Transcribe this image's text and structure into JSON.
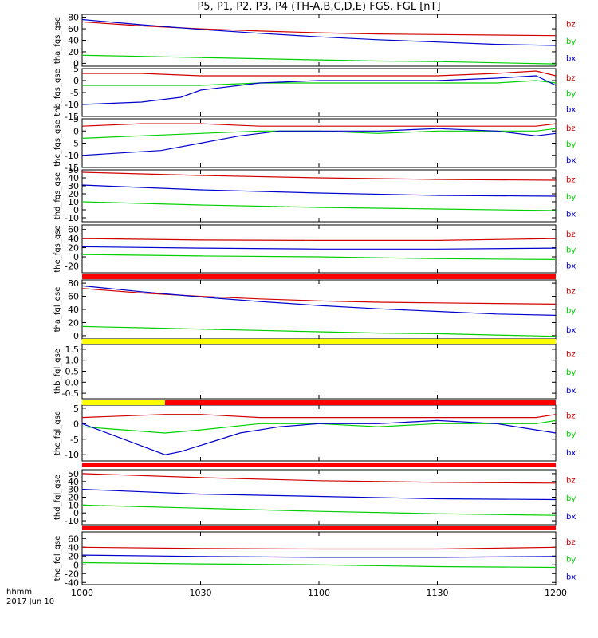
{
  "title": "P5, P1, P2, P3, P4 (TH-A,B,C,D,E) FGS, FGL [nT]",
  "footer": {
    "label": "hhmm",
    "date": "2017 Jun 10"
  },
  "colors": {
    "bz": "#d00000",
    "by": "#00d000",
    "bx": "#0000cc",
    "bar_red": "#ff0000",
    "bar_yellow": "#ffff00",
    "axis": "#000000"
  },
  "x_axis": {
    "ticks": [
      0,
      30,
      60,
      90,
      120
    ],
    "tick_labels": [
      "1000",
      "1030",
      "1100",
      "1130",
      "1200"
    ],
    "range_minutes": [
      0,
      120
    ]
  },
  "chart_data": [
    {
      "type": "line",
      "ylabel": "tha_fgs_gse",
      "ylim": [
        -5,
        85
      ],
      "yticks": [
        0,
        20,
        40,
        60,
        80
      ],
      "series": [
        {
          "name": "bz",
          "x": [
            0,
            15,
            30,
            45,
            60,
            75,
            90,
            105,
            120
          ],
          "y": [
            72,
            65,
            60,
            56,
            53,
            51,
            50,
            49,
            48
          ]
        },
        {
          "name": "by",
          "x": [
            0,
            15,
            30,
            45,
            60,
            75,
            90,
            105,
            120
          ],
          "y": [
            14,
            12,
            10,
            8,
            6,
            4,
            3,
            1,
            -1
          ]
        },
        {
          "name": "bx",
          "x": [
            0,
            15,
            30,
            45,
            60,
            75,
            90,
            105,
            120
          ],
          "y": [
            76,
            67,
            59,
            52,
            46,
            41,
            37,
            33,
            31
          ]
        }
      ]
    },
    {
      "type": "line",
      "ylabel": "thb_fgs_gse",
      "ylim": [
        -15,
        5
      ],
      "yticks": [
        -15,
        -10,
        -5,
        0,
        5
      ],
      "series": [
        {
          "name": "bz",
          "x": [
            0,
            15,
            30,
            45,
            60,
            75,
            90,
            105,
            115,
            120
          ],
          "y": [
            3,
            3,
            2,
            2,
            2,
            2,
            2,
            3,
            4,
            2
          ]
        },
        {
          "name": "by",
          "x": [
            0,
            15,
            30,
            45,
            60,
            75,
            90,
            105,
            115,
            120
          ],
          "y": [
            -2,
            -2,
            -2,
            -1,
            -1,
            -1,
            -1,
            -1,
            0,
            -1
          ]
        },
        {
          "name": "bx",
          "x": [
            0,
            15,
            25,
            30,
            45,
            60,
            75,
            90,
            105,
            115,
            120
          ],
          "y": [
            -10,
            -9,
            -7,
            -4,
            -1,
            0,
            0,
            0,
            1,
            2,
            -2
          ]
        }
      ]
    },
    {
      "type": "line",
      "ylabel": "thc_fgs_gse",
      "ylim": [
        -15,
        5
      ],
      "yticks": [
        -15,
        -10,
        -5,
        0,
        5
      ],
      "series": [
        {
          "name": "bz",
          "x": [
            0,
            15,
            30,
            45,
            60,
            75,
            90,
            105,
            115,
            120
          ],
          "y": [
            2,
            3,
            3,
            2,
            2,
            2,
            2,
            2,
            2,
            3
          ]
        },
        {
          "name": "by",
          "x": [
            0,
            15,
            30,
            45,
            60,
            75,
            90,
            105,
            115,
            120
          ],
          "y": [
            -3,
            -2,
            -1,
            0,
            0,
            -1,
            0,
            0,
            0,
            1
          ]
        },
        {
          "name": "bx",
          "x": [
            0,
            10,
            20,
            30,
            40,
            50,
            60,
            75,
            90,
            105,
            115,
            120
          ],
          "y": [
            -10,
            -9,
            -8,
            -5,
            -2,
            0,
            0,
            0,
            1,
            0,
            -2,
            -1
          ]
        }
      ]
    },
    {
      "type": "line",
      "ylabel": "thd_fgs_gse",
      "ylim": [
        -15,
        50
      ],
      "yticks": [
        -10,
        0,
        10,
        20,
        30,
        40,
        50
      ],
      "series": [
        {
          "name": "bz",
          "x": [
            0,
            30,
            60,
            90,
            120
          ],
          "y": [
            47,
            43,
            40,
            38,
            37
          ]
        },
        {
          "name": "by",
          "x": [
            0,
            30,
            60,
            90,
            120
          ],
          "y": [
            10,
            6,
            3,
            1,
            -1
          ]
        },
        {
          "name": "bx",
          "x": [
            0,
            30,
            60,
            90,
            120
          ],
          "y": [
            31,
            25,
            21,
            18,
            17
          ]
        }
      ]
    },
    {
      "type": "line",
      "ylabel": "the_fgs_gse",
      "ylim": [
        -35,
        70
      ],
      "yticks": [
        -20,
        0,
        20,
        40,
        60
      ],
      "series": [
        {
          "name": "bz",
          "x": [
            0,
            30,
            60,
            90,
            120
          ],
          "y": [
            40,
            37,
            36,
            36,
            40
          ]
        },
        {
          "name": "by",
          "x": [
            0,
            30,
            60,
            90,
            120
          ],
          "y": [
            5,
            2,
            0,
            -4,
            -6
          ]
        },
        {
          "name": "bx",
          "x": [
            0,
            30,
            60,
            90,
            120
          ],
          "y": [
            22,
            19,
            17,
            17,
            19
          ]
        }
      ]
    },
    {
      "type": "line",
      "ylabel": "tha_fgl_gse",
      "ylim": [
        -5,
        85
      ],
      "yticks": [
        0,
        20,
        40,
        60,
        80
      ],
      "series": [
        {
          "name": "bz",
          "x": [
            0,
            15,
            30,
            45,
            60,
            75,
            90,
            105,
            120
          ],
          "y": [
            72,
            65,
            60,
            56,
            53,
            51,
            50,
            49,
            48
          ]
        },
        {
          "name": "by",
          "x": [
            0,
            15,
            30,
            45,
            60,
            75,
            90,
            105,
            120
          ],
          "y": [
            14,
            12,
            10,
            8,
            6,
            4,
            3,
            1,
            -1
          ]
        },
        {
          "name": "bx",
          "x": [
            0,
            15,
            30,
            45,
            60,
            75,
            90,
            105,
            120
          ],
          "y": [
            76,
            67,
            59,
            52,
            46,
            41,
            37,
            33,
            31
          ]
        }
      ]
    },
    {
      "type": "line",
      "ylabel": "thb_fgl_gse",
      "ylim": [
        -0.75,
        1.75
      ],
      "yticks": [
        -0.5,
        0.0,
        0.5,
        1.0,
        1.5
      ],
      "yticklabels": [
        "-0.5",
        "0.0",
        "0.5",
        "1.0",
        "1.5"
      ],
      "series": []
    },
    {
      "type": "line",
      "ylabel": "thc_fgl_gse",
      "ylim": [
        -12,
        6
      ],
      "yticks": [
        -10,
        -5,
        0,
        5
      ],
      "series": [
        {
          "name": "bz",
          "x": [
            0,
            21,
            30,
            45,
            60,
            75,
            90,
            105,
            115,
            120
          ],
          "y": [
            2,
            3,
            3,
            2,
            2,
            2,
            2,
            2,
            2,
            3
          ]
        },
        {
          "name": "by",
          "x": [
            0,
            21,
            30,
            45,
            60,
            75,
            90,
            105,
            115,
            120
          ],
          "y": [
            -1,
            -3,
            -2,
            0,
            0,
            -1,
            0,
            0,
            0,
            1
          ]
        },
        {
          "name": "bx",
          "x": [
            0,
            21,
            25,
            30,
            40,
            50,
            60,
            75,
            90,
            105,
            115,
            120
          ],
          "y": [
            0,
            -10,
            -9,
            -7,
            -3,
            -1,
            0,
            0,
            1,
            0,
            -2,
            -3
          ]
        }
      ]
    },
    {
      "type": "line",
      "ylabel": "thd_fgl_gse",
      "ylim": [
        -15,
        55
      ],
      "yticks": [
        -10,
        0,
        10,
        20,
        30,
        40,
        50
      ],
      "series": [
        {
          "name": "bz",
          "x": [
            0,
            30,
            60,
            90,
            120
          ],
          "y": [
            50,
            45,
            41,
            39,
            38
          ]
        },
        {
          "name": "by",
          "x": [
            0,
            30,
            60,
            90,
            120
          ],
          "y": [
            10,
            6,
            2,
            -1,
            -3
          ]
        },
        {
          "name": "bx",
          "x": [
            0,
            30,
            60,
            90,
            120
          ],
          "y": [
            30,
            24,
            21,
            18,
            17
          ]
        }
      ]
    },
    {
      "type": "line",
      "ylabel": "the_fgl_gse",
      "ylim": [
        -45,
        75
      ],
      "yticks": [
        -40,
        -20,
        0,
        20,
        40,
        60
      ],
      "series": [
        {
          "name": "bz",
          "x": [
            0,
            30,
            60,
            90,
            120
          ],
          "y": [
            40,
            37,
            36,
            36,
            40
          ]
        },
        {
          "name": "by",
          "x": [
            0,
            30,
            60,
            90,
            120
          ],
          "y": [
            5,
            2,
            0,
            -4,
            -6
          ]
        },
        {
          "name": "bx",
          "x": [
            0,
            30,
            60,
            90,
            120
          ],
          "y": [
            22,
            19,
            17,
            17,
            19
          ]
        }
      ]
    }
  ],
  "bars": [
    {
      "after_panel": 4,
      "segments": [
        {
          "from": 0,
          "to": 120,
          "color": "red"
        }
      ]
    },
    {
      "after_panel": 5,
      "segments": [
        {
          "from": 0,
          "to": 120,
          "color": "yellow"
        }
      ]
    },
    {
      "after_panel": 6,
      "segments": [
        {
          "from": 0,
          "to": 21,
          "color": "yellow"
        },
        {
          "from": 21,
          "to": 120,
          "color": "red"
        }
      ]
    },
    {
      "after_panel": 7,
      "segments": [
        {
          "from": 0,
          "to": 120,
          "color": "red"
        }
      ]
    },
    {
      "after_panel": 8,
      "segments": [
        {
          "from": 0,
          "to": 120,
          "color": "red"
        }
      ]
    }
  ],
  "legend": [
    "bz",
    "by",
    "bx"
  ]
}
